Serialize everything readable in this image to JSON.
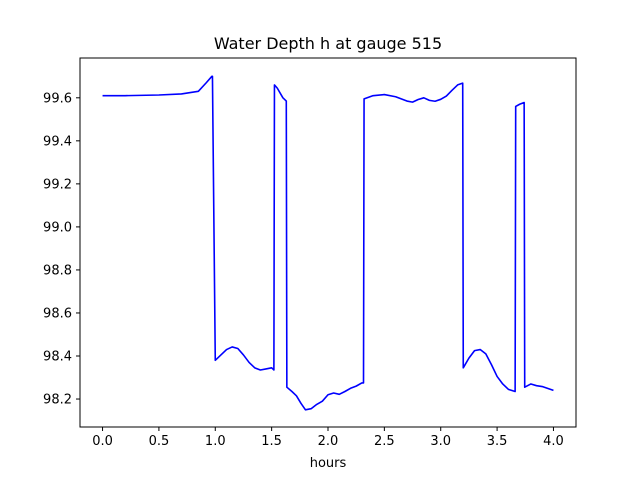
{
  "chart_data": {
    "type": "line",
    "title": "Water Depth h at gauge 515",
    "xlabel": "hours",
    "ylabel": "",
    "xlim": [
      -0.2,
      4.2
    ],
    "ylim": [
      98.07,
      99.785
    ],
    "xticks": [
      0.0,
      0.5,
      1.0,
      1.5,
      2.0,
      2.5,
      3.0,
      3.5,
      4.0
    ],
    "xtick_labels": [
      "0.0",
      "0.5",
      "1.0",
      "1.5",
      "2.0",
      "2.5",
      "3.0",
      "3.5",
      "4.0"
    ],
    "yticks": [
      98.2,
      98.4,
      98.6,
      98.8,
      99.0,
      99.2,
      99.4,
      99.6
    ],
    "ytick_labels": [
      "98.2",
      "98.4",
      "98.6",
      "98.8",
      "99.0",
      "99.2",
      "99.4",
      "99.6"
    ],
    "grid": false,
    "line_color": "#0000ff",
    "series": [
      {
        "name": "",
        "x": [
          0.0,
          0.2,
          0.5,
          0.7,
          0.85,
          0.92,
          0.97,
          0.975,
          1.0,
          1.05,
          1.1,
          1.15,
          1.2,
          1.25,
          1.3,
          1.35,
          1.4,
          1.45,
          1.5,
          1.52,
          1.525,
          1.55,
          1.6,
          1.63,
          1.635,
          1.68,
          1.72,
          1.76,
          1.8,
          1.85,
          1.9,
          1.95,
          2.0,
          2.05,
          2.1,
          2.15,
          2.2,
          2.25,
          2.3,
          2.315,
          2.32,
          2.4,
          2.5,
          2.6,
          2.7,
          2.75,
          2.8,
          2.85,
          2.9,
          2.95,
          3.0,
          3.05,
          3.1,
          3.15,
          3.195,
          3.2,
          3.25,
          3.3,
          3.35,
          3.4,
          3.45,
          3.5,
          3.55,
          3.6,
          3.66,
          3.665,
          3.7,
          3.74,
          3.745,
          3.8,
          3.85,
          3.9,
          4.0
        ],
        "values": [
          99.61,
          99.61,
          99.613,
          99.618,
          99.63,
          99.67,
          99.7,
          99.7,
          98.38,
          98.405,
          98.43,
          98.442,
          98.435,
          98.405,
          98.37,
          98.345,
          98.335,
          98.34,
          98.345,
          98.335,
          99.66,
          99.645,
          99.6,
          99.585,
          98.255,
          98.235,
          98.215,
          98.18,
          98.15,
          98.155,
          98.175,
          98.19,
          98.22,
          98.228,
          98.222,
          98.235,
          98.25,
          98.26,
          98.275,
          98.275,
          99.595,
          99.61,
          99.615,
          99.605,
          99.585,
          99.58,
          99.592,
          99.6,
          99.588,
          99.584,
          99.593,
          99.608,
          99.635,
          99.66,
          99.668,
          98.345,
          98.39,
          98.425,
          98.43,
          98.41,
          98.36,
          98.305,
          98.27,
          98.245,
          98.235,
          99.56,
          99.57,
          99.578,
          98.255,
          98.27,
          98.262,
          98.258,
          98.24
        ]
      }
    ]
  }
}
